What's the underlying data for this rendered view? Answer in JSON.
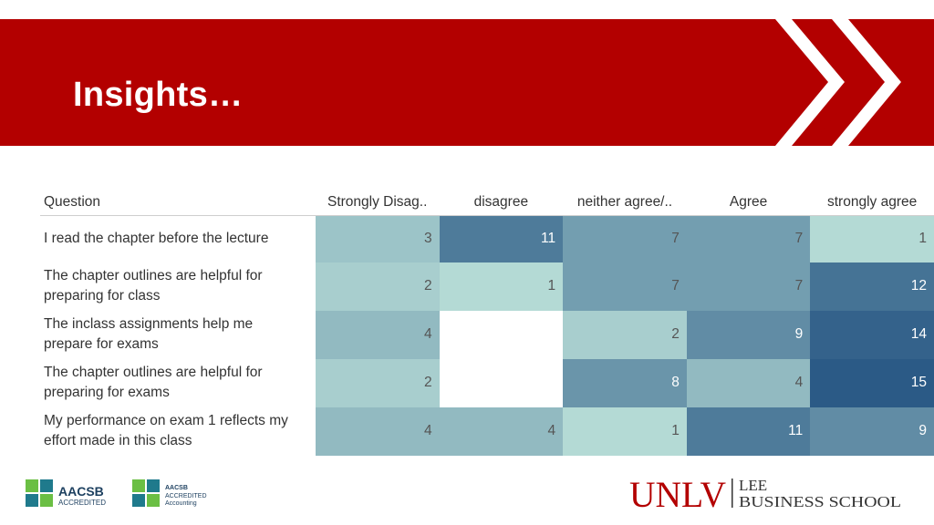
{
  "slide": {
    "title": "Insights…"
  },
  "colors": {
    "banner": "#b30000",
    "scale_low": "#c3e8de",
    "scale_high": "#2b5a86"
  },
  "chart_data": {
    "type": "heatmap",
    "title": "",
    "row_header": "Question",
    "columns": [
      "Strongly Disag..",
      "disagree",
      "neither agree/..",
      "Agree",
      "strongly agree"
    ],
    "rows": [
      {
        "question_lines": [
          "I read the chapter before the lecture"
        ],
        "values": [
          3,
          11,
          7,
          7,
          1
        ]
      },
      {
        "question_lines": [
          "The chapter outlines are helpful for",
          "preparing for class"
        ],
        "values": [
          2,
          1,
          7,
          7,
          12
        ]
      },
      {
        "question_lines": [
          "The inclass assignments help me",
          "prepare for exams"
        ],
        "values": [
          4,
          null,
          2,
          9,
          14
        ]
      },
      {
        "question_lines": [
          "The chapter outlines are helpful for",
          "preparing for exams"
        ],
        "values": [
          2,
          null,
          8,
          4,
          15
        ]
      },
      {
        "question_lines": [
          "My performance on exam 1 reflects my",
          "effort made in this class"
        ],
        "values": [
          4,
          4,
          1,
          11,
          9
        ]
      }
    ]
  },
  "footer": {
    "aacsb_badge_1": {
      "line1": "AACSB",
      "line2": "ACCREDITED"
    },
    "aacsb_badge_2": {
      "line1": "AACSB",
      "line2": "ACCREDITED",
      "line3": "Accounting"
    },
    "school_logo": {
      "unlv": "UNLV",
      "lee": "LEE",
      "school": "BUSINESS SCHOOL"
    }
  }
}
